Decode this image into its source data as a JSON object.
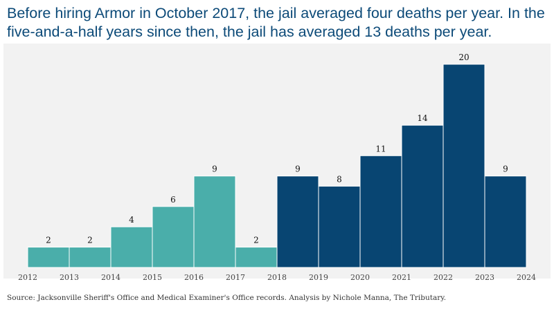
{
  "title": "Before hiring Armor in October 2017, the jail averaged four deaths per year. In the five-and-a-half years since then, the jail has averaged 13 deaths per year.",
  "source": "Source: Jacksonville Sheriff's Office and Medical Examiner's Office records. Analysis by Nichole Manna, The Tributary.",
  "colors": {
    "before": "#4aaeaa",
    "after": "#084572",
    "title": "#0c4a78",
    "background": "#f2f2f2"
  },
  "chart_data": {
    "type": "bar",
    "title": "Before hiring Armor in October 2017, the jail averaged four deaths per year. In the five-and-a-half years since then, the jail has averaged 13 deaths per year.",
    "xlabel": "",
    "ylabel": "",
    "x_ticks": [
      "2012",
      "2013",
      "2014",
      "2015",
      "2016",
      "2017",
      "2018",
      "2019",
      "2020",
      "2021",
      "2022",
      "2023",
      "2024"
    ],
    "bins": [
      {
        "start": 2012,
        "end": 2013,
        "value": 2,
        "label": "2",
        "group": "before"
      },
      {
        "start": 2013,
        "end": 2014,
        "value": 2,
        "label": "2",
        "group": "before"
      },
      {
        "start": 2014,
        "end": 2015,
        "value": 4,
        "label": "4",
        "group": "before"
      },
      {
        "start": 2015,
        "end": 2016,
        "value": 6,
        "label": "6",
        "group": "before"
      },
      {
        "start": 2016,
        "end": 2017,
        "value": 9,
        "label": "9",
        "group": "before"
      },
      {
        "start": 2017,
        "end": 2018,
        "value": 2,
        "label": "2",
        "group": "before"
      },
      {
        "start": 2018,
        "end": 2019,
        "value": 9,
        "label": "9",
        "group": "after"
      },
      {
        "start": 2019,
        "end": 2020,
        "value": 8,
        "label": "8",
        "group": "after"
      },
      {
        "start": 2020,
        "end": 2021,
        "value": 11,
        "label": "11",
        "group": "after"
      },
      {
        "start": 2021,
        "end": 2022,
        "value": 14,
        "label": "14",
        "group": "after"
      },
      {
        "start": 2022,
        "end": 2023,
        "value": 20,
        "label": "20",
        "group": "after"
      },
      {
        "start": 2023,
        "end": 2024,
        "value": 9,
        "label": "9",
        "group": "after"
      }
    ],
    "xlim": [
      2012,
      2024
    ],
    "ylim": [
      0,
      20
    ],
    "grid": false,
    "legend": "none"
  }
}
